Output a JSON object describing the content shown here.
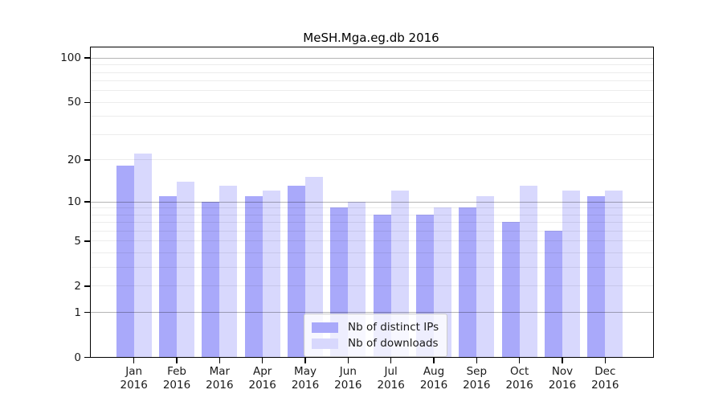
{
  "figure": {
    "title": "MeSH.Mga.eg.db 2016"
  },
  "chart_data": {
    "type": "bar",
    "title": "MeSH.Mga.eg.db 2016",
    "categories": [
      "Jan",
      "Feb",
      "Mar",
      "Apr",
      "May",
      "Jun",
      "Jul",
      "Aug",
      "Sep",
      "Oct",
      "Nov",
      "Dec"
    ],
    "category_year": "2016",
    "series": [
      {
        "name": "Nb of distinct IPs",
        "color": "#a9a9fa",
        "values": [
          18,
          11,
          10,
          11,
          13,
          9,
          8,
          8,
          9,
          7,
          6,
          11
        ]
      },
      {
        "name": "Nb of downloads",
        "color": "#d8d8fd",
        "values": [
          22,
          14,
          13,
          12,
          15,
          10,
          12,
          9,
          11,
          13,
          12,
          12
        ]
      }
    ],
    "yscale": "log1p",
    "ylim": [
      0,
      117
    ],
    "yticks": [
      0,
      1,
      2,
      5,
      10,
      20,
      50,
      100
    ],
    "grid_major": [
      1,
      10,
      100
    ],
    "grid_minor": [
      2,
      3,
      4,
      5,
      6,
      7,
      8,
      9,
      20,
      30,
      40,
      50,
      60,
      70,
      80,
      90
    ],
    "grid_major_color": "rgba(0,0,0,0.29)",
    "grid_minor_color": "rgba(0,0,0,0.075)",
    "legend_position": "lower-center",
    "legend_entries": [
      "Nb of distinct IPs",
      "Nb of downloads"
    ]
  }
}
